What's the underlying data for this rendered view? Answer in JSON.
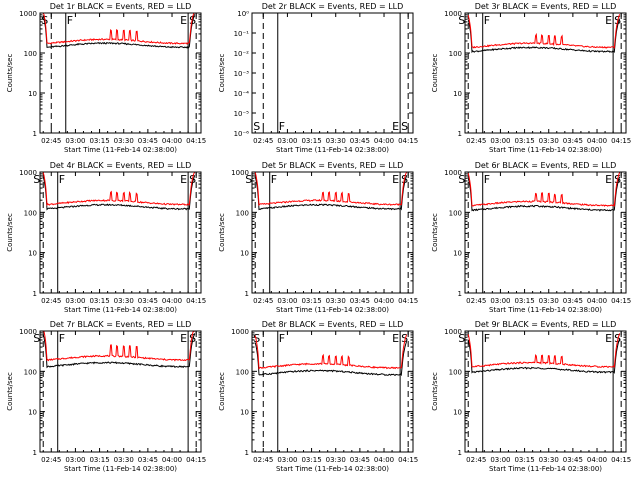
{
  "colors": {
    "events": "#000000",
    "lld": "#ff0000",
    "axis": "#000000",
    "background": "#ffffff"
  },
  "shared": {
    "xlabel": "Start Time (11-Feb-14 02:38:00)",
    "ylabel": "Counts/sec",
    "xtick_labels": [
      "02:45",
      "03:00",
      "03:15",
      "03:30",
      "03:45",
      "04:00",
      "04:15"
    ],
    "xlim_minutes_after_0238": [
      0,
      100
    ],
    "log_y": true,
    "marker_labels": {
      "s": "S",
      "f": "F",
      "e": "E"
    }
  },
  "chart_data": [
    {
      "type": "line",
      "title": "Det 1r BLACK = Events, RED = LLD",
      "ylim": [
        1,
        1000
      ],
      "ytick_labels": [
        "1",
        "10",
        "100",
        "1000"
      ],
      "lld_base": 200,
      "events_base": 160,
      "spike_height": 1.7,
      "markers": {
        "s": 7,
        "f": 16,
        "e": 92,
        "s2": 97
      },
      "series": [
        {
          "x": [
            0,
            100
          ]
        },
        {
          "x": [
            0,
            100
          ]
        }
      ]
    },
    {
      "type": "line",
      "title": "Det 2r BLACK = Events, RED = LLD",
      "ylim": [
        1,
        1e-06
      ],
      "ytick_labels": [
        "10⁰",
        "10⁻¹",
        "10⁻²",
        "10⁻³",
        "10⁻⁴",
        "10⁻⁵",
        "10⁻⁶"
      ],
      "empty": true,
      "markers": {
        "s": 7,
        "f": 16,
        "e": 92,
        "s2": 97
      },
      "series": []
    },
    {
      "type": "line",
      "title": "Det 3r BLACK = Events, RED = LLD",
      "ylim": [
        1,
        1000
      ],
      "ytick_labels": [
        "1",
        "10",
        "100",
        "1000"
      ],
      "lld_base": 160,
      "events_base": 125,
      "spike_height": 1.6,
      "markers": {
        "s": 2,
        "f": 11,
        "e": 92,
        "s2": 97
      },
      "series": [
        {
          "x": [
            0,
            100
          ]
        },
        {
          "x": [
            0,
            100
          ]
        }
      ]
    },
    {
      "type": "line",
      "title": "Det 4r BLACK = Events, RED = LLD",
      "ylim": [
        1,
        1000
      ],
      "ytick_labels": [
        "1",
        "10",
        "100",
        "1000"
      ],
      "lld_base": 180,
      "events_base": 140,
      "spike_height": 1.6,
      "markers": {
        "s": 2,
        "f": 11,
        "e": 92,
        "s2": 97
      },
      "series": [
        {
          "x": [
            0,
            100
          ]
        },
        {
          "x": [
            0,
            100
          ]
        }
      ]
    },
    {
      "type": "line",
      "title": "Det 5r BLACK = Events, RED = LLD",
      "ylim": [
        1,
        1000
      ],
      "ytick_labels": [
        "1",
        "10",
        "100",
        "1000"
      ],
      "lld_base": 180,
      "events_base": 140,
      "spike_height": 1.6,
      "markers": {
        "s": 2,
        "f": 11,
        "e": 92,
        "s2": 97
      },
      "series": [
        {
          "x": [
            0,
            100
          ]
        },
        {
          "x": [
            0,
            100
          ]
        }
      ]
    },
    {
      "type": "line",
      "title": "Det 6r BLACK = Events, RED = LLD",
      "ylim": [
        1,
        1000
      ],
      "ytick_labels": [
        "1",
        "10",
        "100",
        "1000"
      ],
      "lld_base": 170,
      "events_base": 130,
      "spike_height": 1.6,
      "markers": {
        "s": 2,
        "f": 11,
        "e": 92,
        "s2": 97
      },
      "series": [
        {
          "x": [
            0,
            100
          ]
        },
        {
          "x": [
            0,
            100
          ]
        }
      ]
    },
    {
      "type": "line",
      "title": "Det 7r BLACK = Events, RED = LLD",
      "ylim": [
        1,
        1000
      ],
      "ytick_labels": [
        "1",
        "10",
        "100",
        "1000"
      ],
      "lld_base": 220,
      "events_base": 150,
      "spike_height": 1.8,
      "markers": {
        "s": 2,
        "f": 11,
        "e": 92,
        "s2": 97
      },
      "series": [
        {
          "x": [
            0,
            100
          ]
        },
        {
          "x": [
            0,
            100
          ]
        }
      ]
    },
    {
      "type": "line",
      "title": "Det 8r BLACK = Events, RED = LLD",
      "ylim": [
        1,
        1000
      ],
      "ytick_labels": [
        "1",
        "10",
        "100",
        "1000"
      ],
      "lld_base": 140,
      "events_base": 95,
      "spike_height": 1.6,
      "markers": {
        "s": 7,
        "f": 16,
        "e": 92,
        "s2": 97
      },
      "series": [
        {
          "x": [
            0,
            100
          ]
        },
        {
          "x": [
            0,
            100
          ]
        }
      ]
    },
    {
      "type": "line",
      "title": "Det 9r BLACK = Events, RED = LLD",
      "ylim": [
        1,
        1000
      ],
      "ytick_labels": [
        "1",
        "10",
        "100",
        "1000"
      ],
      "lld_base": 150,
      "events_base": 110,
      "spike_height": 1.5,
      "markers": {
        "s": 2,
        "f": 11,
        "e": 92,
        "s2": 97
      },
      "series": [
        {
          "x": [
            0,
            100
          ]
        },
        {
          "x": [
            0,
            100
          ]
        }
      ]
    }
  ]
}
